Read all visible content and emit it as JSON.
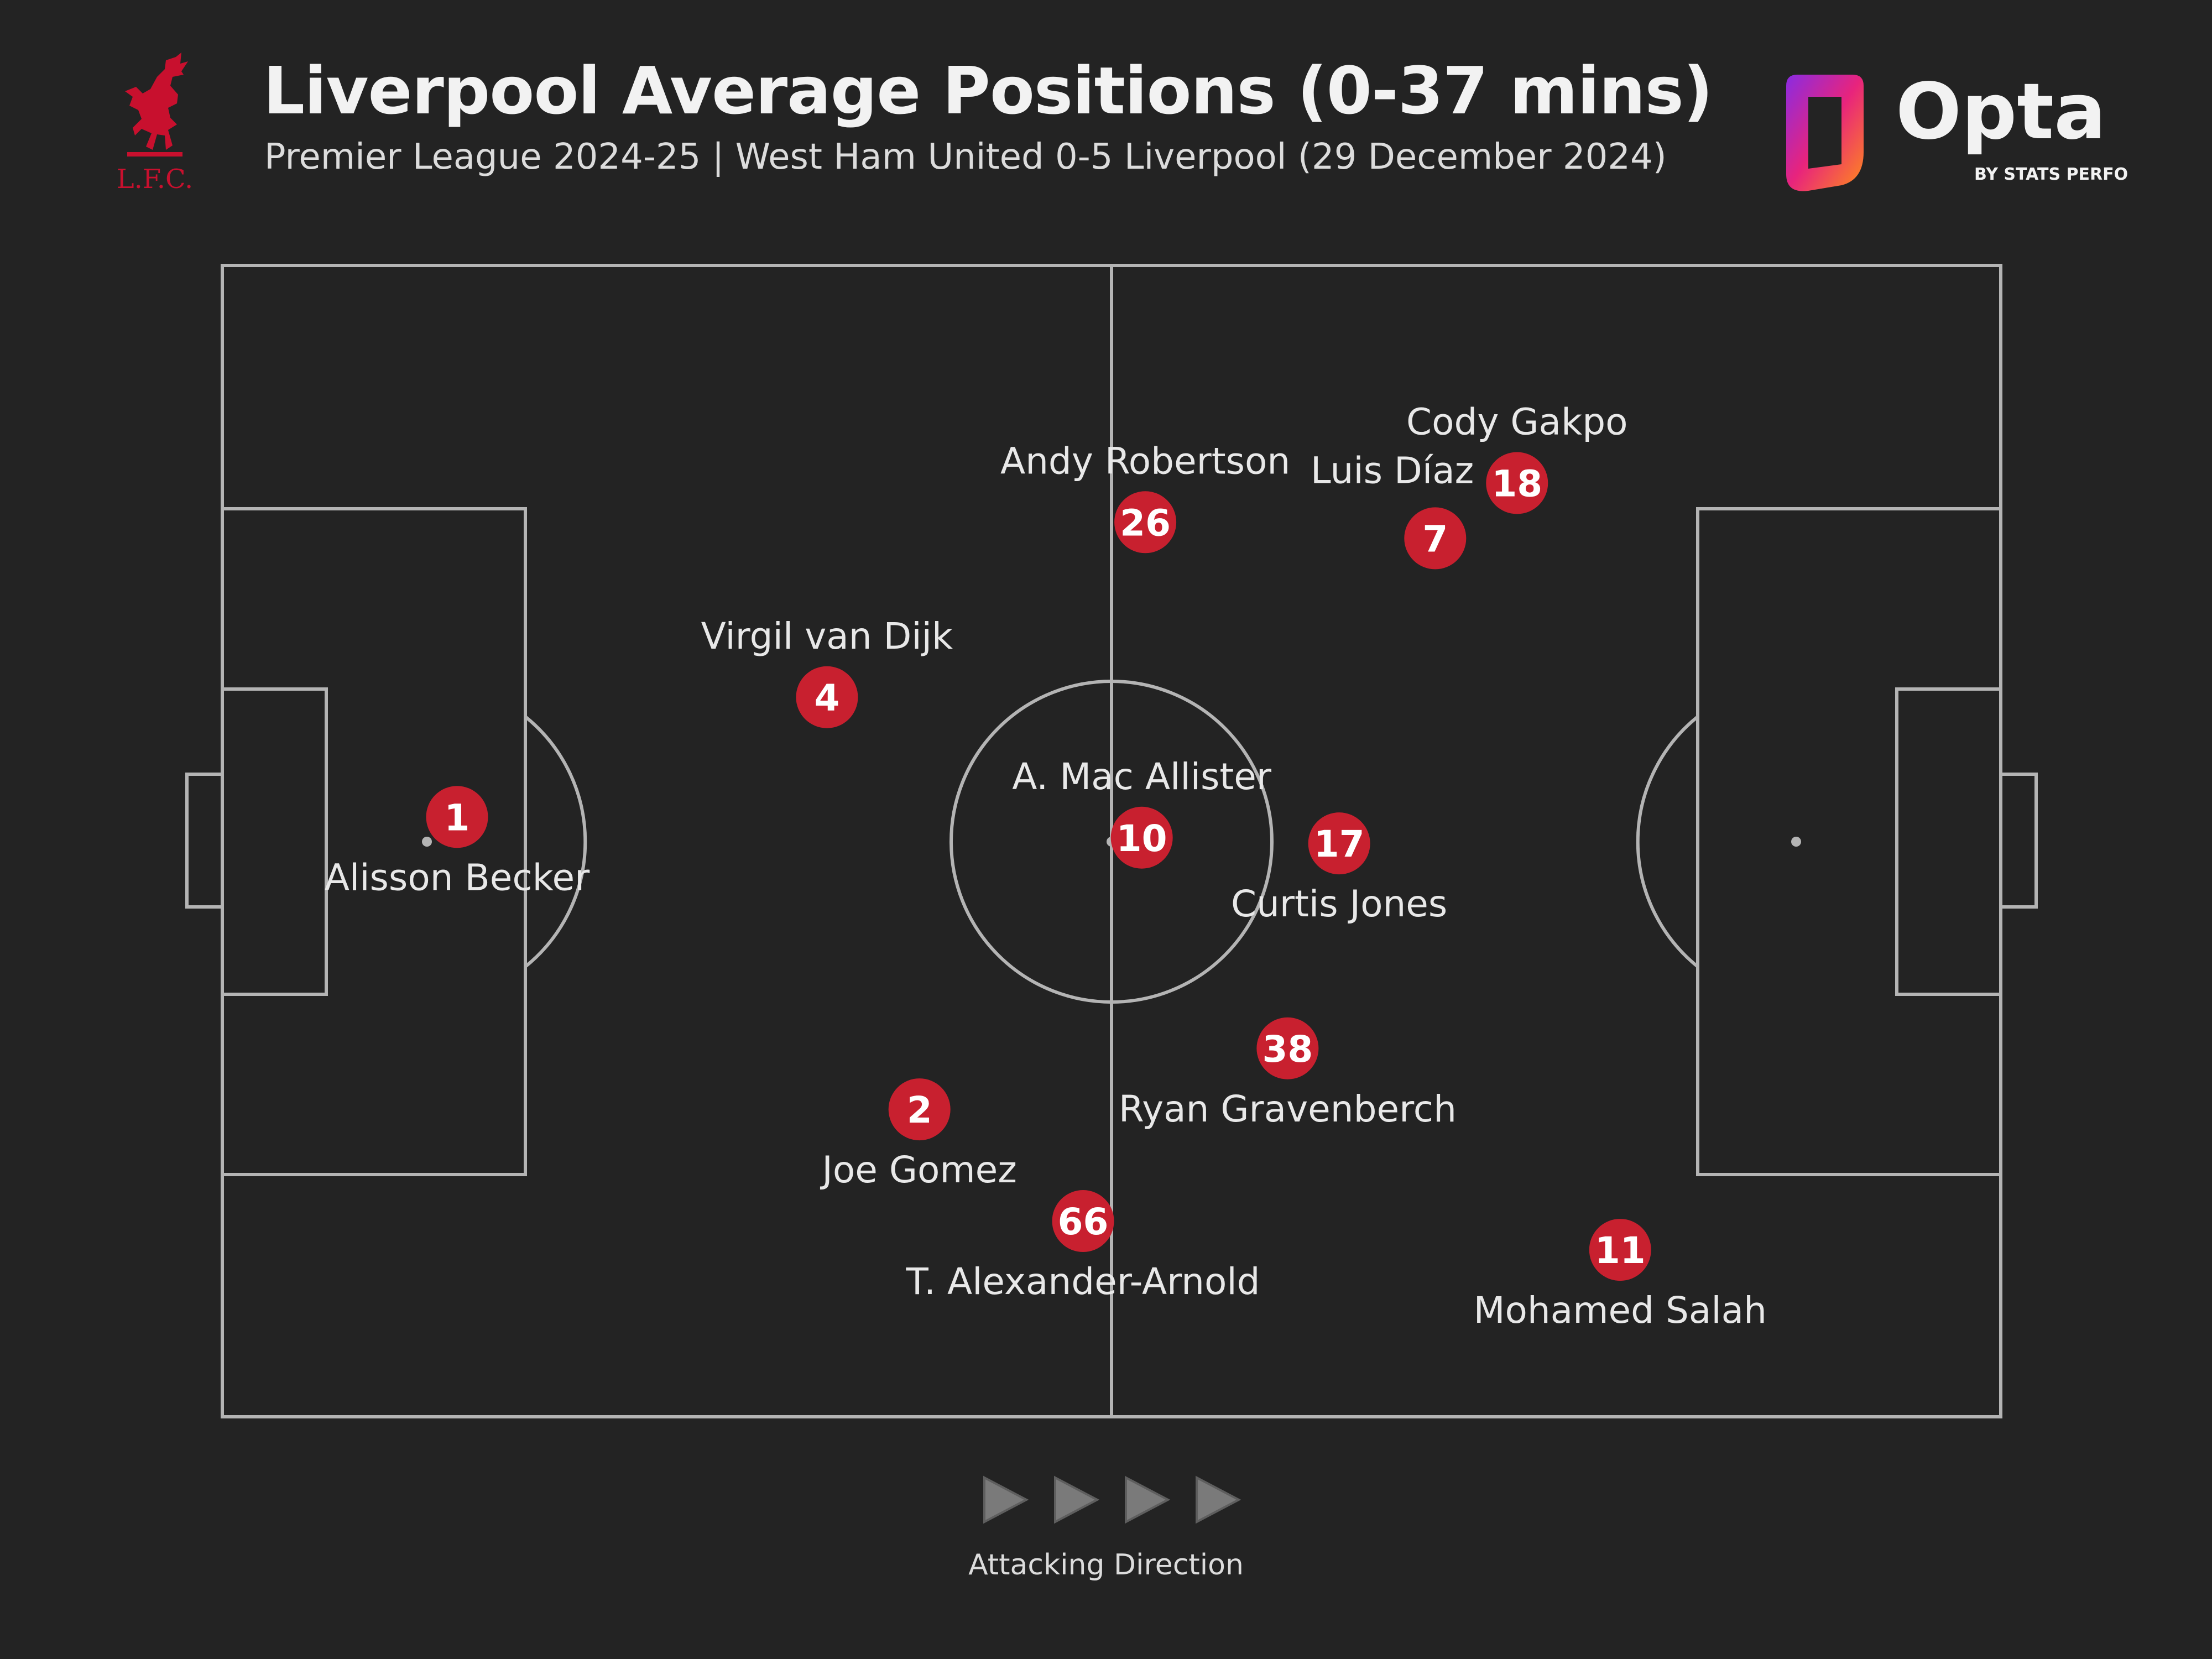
{
  "header": {
    "title": "Liverpool Average Positions (0-37 mins)",
    "subtitle": "Premier League 2024-25 | West Ham United 0-5 Liverpool (29 December 2024)"
  },
  "club_logo": {
    "text": "L.F.C.",
    "color": "#c8102e"
  },
  "brand_logo": {
    "name": "Opta",
    "tagline": "BY STATS PERFORM"
  },
  "colors": {
    "background": "#232323",
    "lines": "#b4b4b4",
    "marker": "#c8202f",
    "arrow": "#7a7a7a"
  },
  "pitch": {
    "x_range": [
      0,
      100
    ],
    "y_range": [
      0,
      100
    ]
  },
  "players": [
    {
      "number": "1",
      "name": "Alisson Becker",
      "x": 13.2,
      "y": 47.9,
      "label": "below"
    },
    {
      "number": "4",
      "name": "Virgil van Dijk",
      "x": 34.0,
      "y": 37.5,
      "label": "above"
    },
    {
      "number": "26",
      "name": "Andy Robertson",
      "x": 51.9,
      "y": 22.3,
      "label": "above"
    },
    {
      "number": "18",
      "name": "Cody Gakpo",
      "x": 72.8,
      "y": 18.9,
      "label": "above"
    },
    {
      "number": "7",
      "name": "Luis Díaz",
      "x": 68.2,
      "y": 23.7,
      "label": "above-left"
    },
    {
      "number": "10",
      "name": "A. Mac Allister",
      "x": 51.7,
      "y": 49.7,
      "label": "above"
    },
    {
      "number": "17",
      "name": "Curtis Jones",
      "x": 62.8,
      "y": 50.2,
      "label": "below"
    },
    {
      "number": "38",
      "name": "Ryan Gravenberch",
      "x": 59.9,
      "y": 68.0,
      "label": "below"
    },
    {
      "number": "2",
      "name": "Joe Gomez",
      "x": 39.2,
      "y": 73.3,
      "label": "below"
    },
    {
      "number": "66",
      "name": "T. Alexander-Arnold",
      "x": 48.4,
      "y": 83.0,
      "label": "below"
    },
    {
      "number": "11",
      "name": "Mohamed Salah",
      "x": 78.6,
      "y": 85.5,
      "label": "below"
    }
  ],
  "direction": {
    "label": "Attacking Direction",
    "arrow_count": 4
  }
}
